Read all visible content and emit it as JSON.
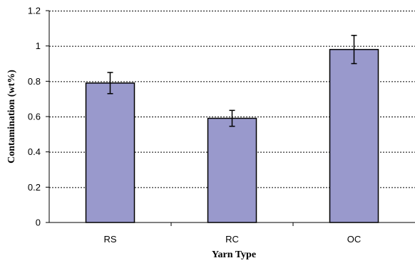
{
  "chart_data": {
    "type": "bar",
    "title": "",
    "xlabel": "Yarn Type",
    "ylabel": "Contamination (wt%)",
    "categories": [
      "RS",
      "RC",
      "OC"
    ],
    "values": [
      0.79,
      0.59,
      0.98
    ],
    "error_bars": [
      0.06,
      0.045,
      0.08
    ],
    "ylim": [
      0,
      1.2
    ],
    "yticks": [
      0,
      0.2,
      0.4,
      0.6,
      0.8,
      1,
      1.2
    ],
    "ytick_labels": [
      "0",
      "0.2",
      "0.4",
      "0.6",
      "0.8",
      "1",
      "1.2"
    ],
    "grid": "horizontal dashed",
    "legend": "none",
    "bar_color": "#9999cc",
    "bar_stroke": "#000000"
  }
}
